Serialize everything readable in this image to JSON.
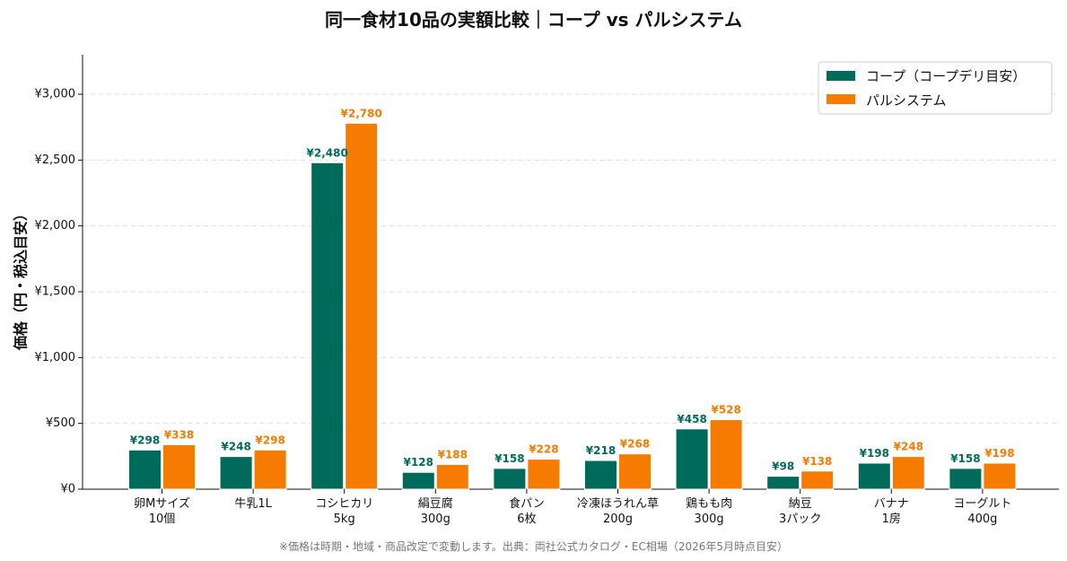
{
  "chart_data": {
    "type": "bar",
    "title": "同一食材10品の実額比較｜コープ vs パルシステム",
    "ylabel": "価格（円・税込目安）",
    "xlabel": "",
    "ylim": [
      0,
      3300
    ],
    "yticks": [
      0,
      500,
      1000,
      1500,
      2000,
      2500,
      3000
    ],
    "ytick_labels": [
      "¥0",
      "¥500",
      "¥1,000",
      "¥1,500",
      "¥2,000",
      "¥2,500",
      "¥3,000"
    ],
    "grid": "horizontal dashed",
    "legend_position": "top-right",
    "categories": [
      [
        "卵Mサイズ",
        "10個"
      ],
      [
        "牛乳1L"
      ],
      [
        "コシヒカリ",
        "5kg"
      ],
      [
        "絹豆腐",
        "300g"
      ],
      [
        "食パン",
        "6枚"
      ],
      [
        "冷凍ほうれん草",
        "200g"
      ],
      [
        "鶏もも肉",
        "300g"
      ],
      [
        "納豆",
        "3パック"
      ],
      [
        "バナナ",
        "1房"
      ],
      [
        "ヨーグルト",
        "400g"
      ]
    ],
    "series": [
      {
        "name": "コープ（コープデリ目安）",
        "color": "#006b5b",
        "values": [
          298,
          248,
          2480,
          128,
          158,
          218,
          458,
          98,
          198,
          158
        ],
        "labels": [
          "¥298",
          "¥248",
          "¥2,480",
          "¥128",
          "¥158",
          "¥218",
          "¥458",
          "¥98",
          "¥198",
          "¥158"
        ]
      },
      {
        "name": "パルシステム",
        "color": "#f57c00",
        "values": [
          338,
          298,
          2780,
          188,
          228,
          268,
          528,
          138,
          248,
          198
        ],
        "labels": [
          "¥338",
          "¥298",
          "¥2,780",
          "¥188",
          "¥228",
          "¥268",
          "¥528",
          "¥138",
          "¥248",
          "¥198"
        ]
      }
    ]
  },
  "footnote": "※価格は時期・地域・商品改定で変動します。出典：両社公式カタログ・EC相場（2026年5月時点目安）"
}
